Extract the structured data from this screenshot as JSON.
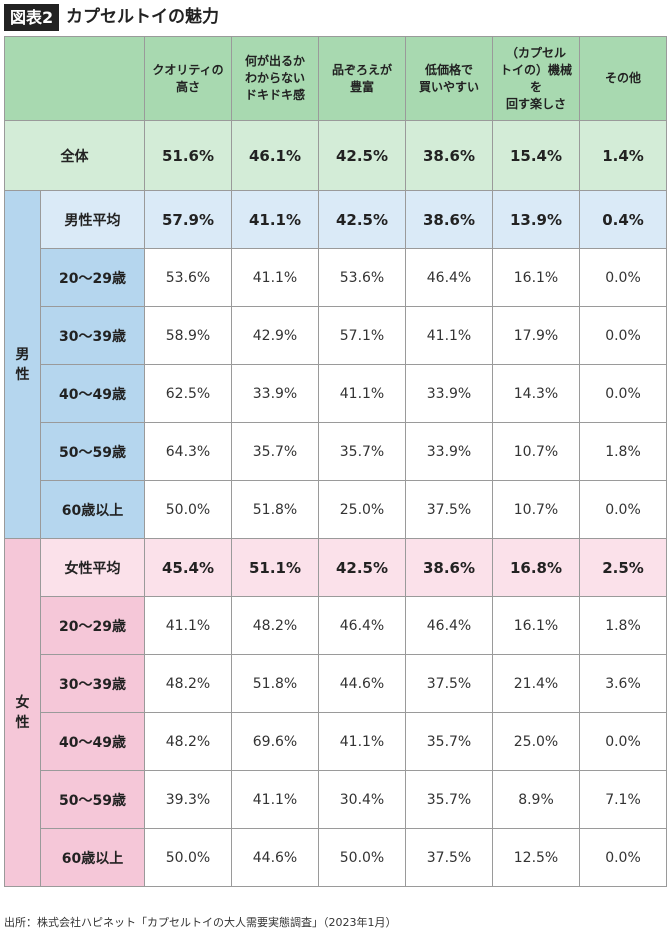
{
  "figure": {
    "label": "図表2",
    "title": "カプセルトイの魅力"
  },
  "chart_data": {
    "type": "table",
    "columns": [
      [
        "クオリティの",
        "高さ"
      ],
      [
        "何が出るか",
        "わからない",
        "ドキドキ感"
      ],
      [
        "品ぞろえが",
        "豊富"
      ],
      [
        "低価格で",
        "買いやすい"
      ],
      [
        "（カプセル",
        "トイの）機械を",
        "回す楽しさ"
      ],
      [
        "その他"
      ]
    ],
    "total": {
      "label": "全体",
      "values": [
        "51.6%",
        "46.1%",
        "42.5%",
        "38.6%",
        "15.4%",
        "1.4%"
      ]
    },
    "groups": [
      {
        "name": "男性",
        "chars": [
          "男",
          "性"
        ],
        "rows": [
          {
            "label": "男性平均",
            "values": [
              "57.9%",
              "41.1%",
              "42.5%",
              "38.6%",
              "13.9%",
              "0.4%"
            ]
          },
          {
            "label": "20〜29歳",
            "values": [
              "53.6%",
              "41.1%",
              "53.6%",
              "46.4%",
              "16.1%",
              "0.0%"
            ]
          },
          {
            "label": "30〜39歳",
            "values": [
              "58.9%",
              "42.9%",
              "57.1%",
              "41.1%",
              "17.9%",
              "0.0%"
            ]
          },
          {
            "label": "40〜49歳",
            "values": [
              "62.5%",
              "33.9%",
              "41.1%",
              "33.9%",
              "14.3%",
              "0.0%"
            ]
          },
          {
            "label": "50〜59歳",
            "values": [
              "64.3%",
              "35.7%",
              "35.7%",
              "33.9%",
              "10.7%",
              "1.8%"
            ]
          },
          {
            "label": "60歳以上",
            "values": [
              "50.0%",
              "51.8%",
              "25.0%",
              "37.5%",
              "10.7%",
              "0.0%"
            ]
          }
        ]
      },
      {
        "name": "女性",
        "chars": [
          "女",
          "性"
        ],
        "rows": [
          {
            "label": "女性平均",
            "values": [
              "45.4%",
              "51.1%",
              "42.5%",
              "38.6%",
              "16.8%",
              "2.5%"
            ]
          },
          {
            "label": "20〜29歳",
            "values": [
              "41.1%",
              "48.2%",
              "46.4%",
              "46.4%",
              "16.1%",
              "1.8%"
            ]
          },
          {
            "label": "30〜39歳",
            "values": [
              "48.2%",
              "51.8%",
              "44.6%",
              "37.5%",
              "21.4%",
              "3.6%"
            ]
          },
          {
            "label": "40〜49歳",
            "values": [
              "48.2%",
              "69.6%",
              "41.1%",
              "35.7%",
              "25.0%",
              "0.0%"
            ]
          },
          {
            "label": "50〜59歳",
            "values": [
              "39.3%",
              "41.1%",
              "30.4%",
              "35.7%",
              "8.9%",
              "7.1%"
            ]
          },
          {
            "label": "60歳以上",
            "values": [
              "50.0%",
              "44.6%",
              "50.0%",
              "37.5%",
              "12.5%",
              "0.0%"
            ]
          }
        ]
      }
    ]
  },
  "source": "出所：株式会社ハピネット「カプセルトイの大人需要実態調査」（2023年1月）"
}
